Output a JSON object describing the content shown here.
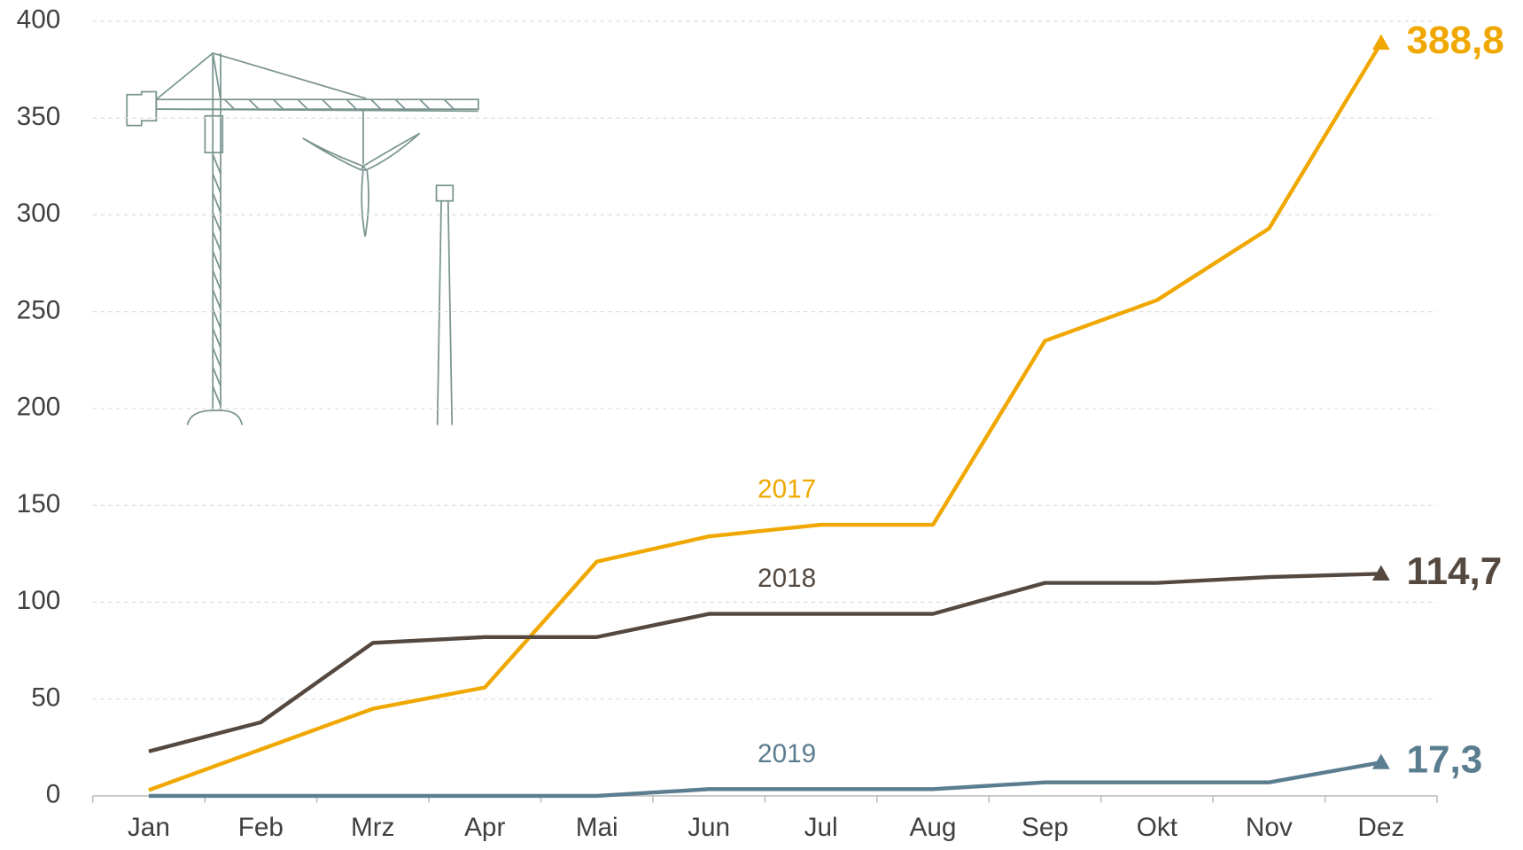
{
  "chart_data": {
    "type": "line",
    "categories": [
      "Jan",
      "Feb",
      "Mrz",
      "Apr",
      "Mai",
      "Jun",
      "Jul",
      "Aug",
      "Sep",
      "Okt",
      "Nov",
      "Dez"
    ],
    "series": [
      {
        "name": "2017",
        "color": "#f0a800",
        "values": [
          3,
          24,
          45,
          56,
          121,
          134,
          140,
          140,
          235,
          256,
          293,
          388.8
        ],
        "value_labels": [
          null,
          null,
          null,
          null,
          null,
          null,
          null,
          null,
          null,
          null,
          null,
          "388,8"
        ]
      },
      {
        "name": "2018",
        "color": "#54483f",
        "values": [
          23,
          38,
          79,
          82,
          82,
          94,
          94,
          94,
          110,
          110,
          113,
          114.7
        ],
        "value_labels": [
          null,
          null,
          null,
          null,
          null,
          null,
          null,
          null,
          null,
          null,
          null,
          "114,7"
        ]
      },
      {
        "name": "2019",
        "color": "#5a7d8f",
        "values": [
          0,
          0,
          0,
          0,
          0,
          3.5,
          3.5,
          3.5,
          7,
          7,
          7,
          17.3
        ],
        "value_labels": [
          null,
          null,
          null,
          null,
          null,
          null,
          null,
          null,
          null,
          null,
          null,
          "17,3"
        ]
      }
    ],
    "ylim": [
      0,
      400
    ],
    "yticks": [
      0,
      50,
      100,
      150,
      200,
      250,
      300,
      350,
      400
    ],
    "grid": true
  }
}
